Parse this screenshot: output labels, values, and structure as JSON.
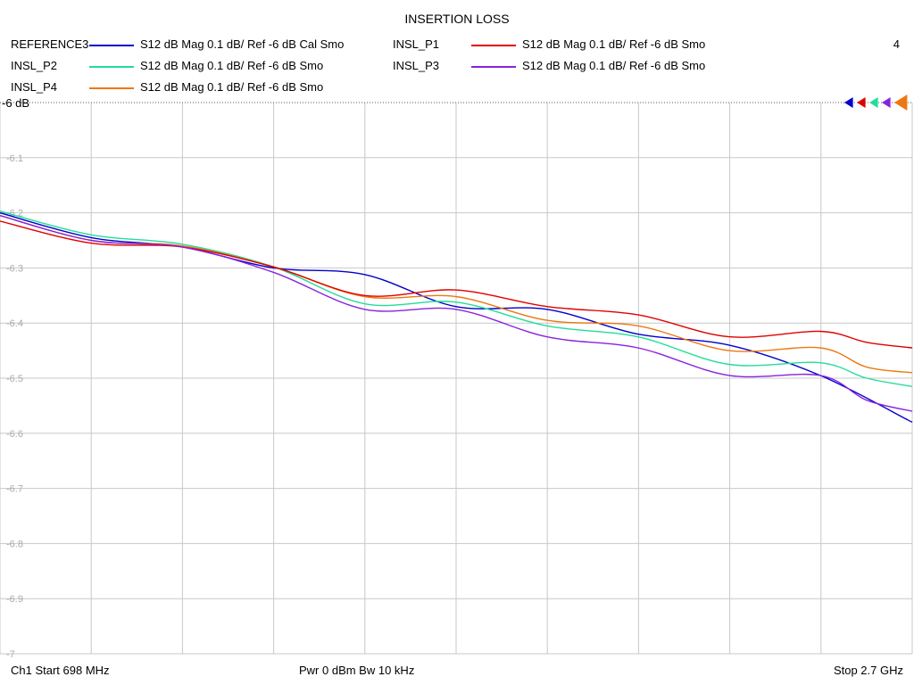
{
  "chart_data": {
    "type": "line",
    "title": "INSERTION LOSS",
    "channel_number": "4",
    "reference_label": "-6 dB",
    "ylim": [
      -7,
      -6
    ],
    "yticks": [
      "-6.1",
      "-6.2",
      "-6.3",
      "-6.4",
      "-6.5",
      "-6.6",
      "-6.7",
      "-6.8",
      "-6.9",
      "-7"
    ],
    "x_start_mhz": 698,
    "x_stop_mhz": 2700,
    "x_divisions": 10,
    "grid": true,
    "series": [
      {
        "name": "REFERENCE3",
        "description": "S12  dB Mag  0.1 dB/ Ref -6 dB  Cal Smo",
        "color": "#0000cc",
        "x": [
          698,
          898,
          1098,
          1298,
          1498,
          1698,
          1898,
          2098,
          2298,
          2498,
          2700
        ],
        "y": [
          -6.2,
          -6.245,
          -6.262,
          -6.3,
          -6.312,
          -6.37,
          -6.375,
          -6.42,
          -6.44,
          -6.495,
          -6.58
        ]
      },
      {
        "name": "INSL_P1",
        "description": "S12  dB Mag  0.1 dB/ Ref -6 dB  Smo",
        "color": "#e00000",
        "x": [
          698,
          898,
          1098,
          1298,
          1498,
          1698,
          1898,
          2098,
          2298,
          2498,
          2600,
          2700
        ],
        "y": [
          -6.215,
          -6.255,
          -6.262,
          -6.298,
          -6.35,
          -6.34,
          -6.37,
          -6.385,
          -6.425,
          -6.415,
          -6.435,
          -6.445
        ]
      },
      {
        "name": "INSL_P2",
        "description": "S12  dB Mag  0.1 dB/ Ref -6 dB  Smo",
        "color": "#22dd99",
        "x": [
          698,
          898,
          1098,
          1298,
          1498,
          1698,
          1898,
          2098,
          2298,
          2498,
          2600,
          2700
        ],
        "y": [
          -6.197,
          -6.24,
          -6.257,
          -6.298,
          -6.365,
          -6.362,
          -6.405,
          -6.425,
          -6.475,
          -6.472,
          -6.5,
          -6.515
        ]
      },
      {
        "name": "INSL_P3",
        "description": "S12  dB Mag  0.1 dB/ Ref -6 dB  Smo",
        "color": "#8822dd",
        "x": [
          698,
          898,
          1098,
          1298,
          1498,
          1698,
          1898,
          2098,
          2298,
          2498,
          2600,
          2700
        ],
        "y": [
          -6.205,
          -6.25,
          -6.262,
          -6.308,
          -6.375,
          -6.375,
          -6.425,
          -6.445,
          -6.495,
          -6.495,
          -6.54,
          -6.56
        ]
      },
      {
        "name": "INSL_P4",
        "description": "S12  dB Mag  0.1 dB/ Ref -6 dB  Smo",
        "color": "#ee7711",
        "x": [
          698,
          898,
          1098,
          1298,
          1498,
          1698,
          1898,
          2098,
          2298,
          2498,
          2600,
          2700
        ],
        "y": [
          -6.205,
          -6.25,
          -6.26,
          -6.298,
          -6.352,
          -6.352,
          -6.395,
          -6.405,
          -6.45,
          -6.445,
          -6.48,
          -6.49
        ]
      }
    ]
  },
  "footer": {
    "start": "Ch1  Start  698 MHz",
    "power": "Pwr  0 dBm  Bw  10 kHz",
    "stop": "Stop  2.7 GHz"
  }
}
